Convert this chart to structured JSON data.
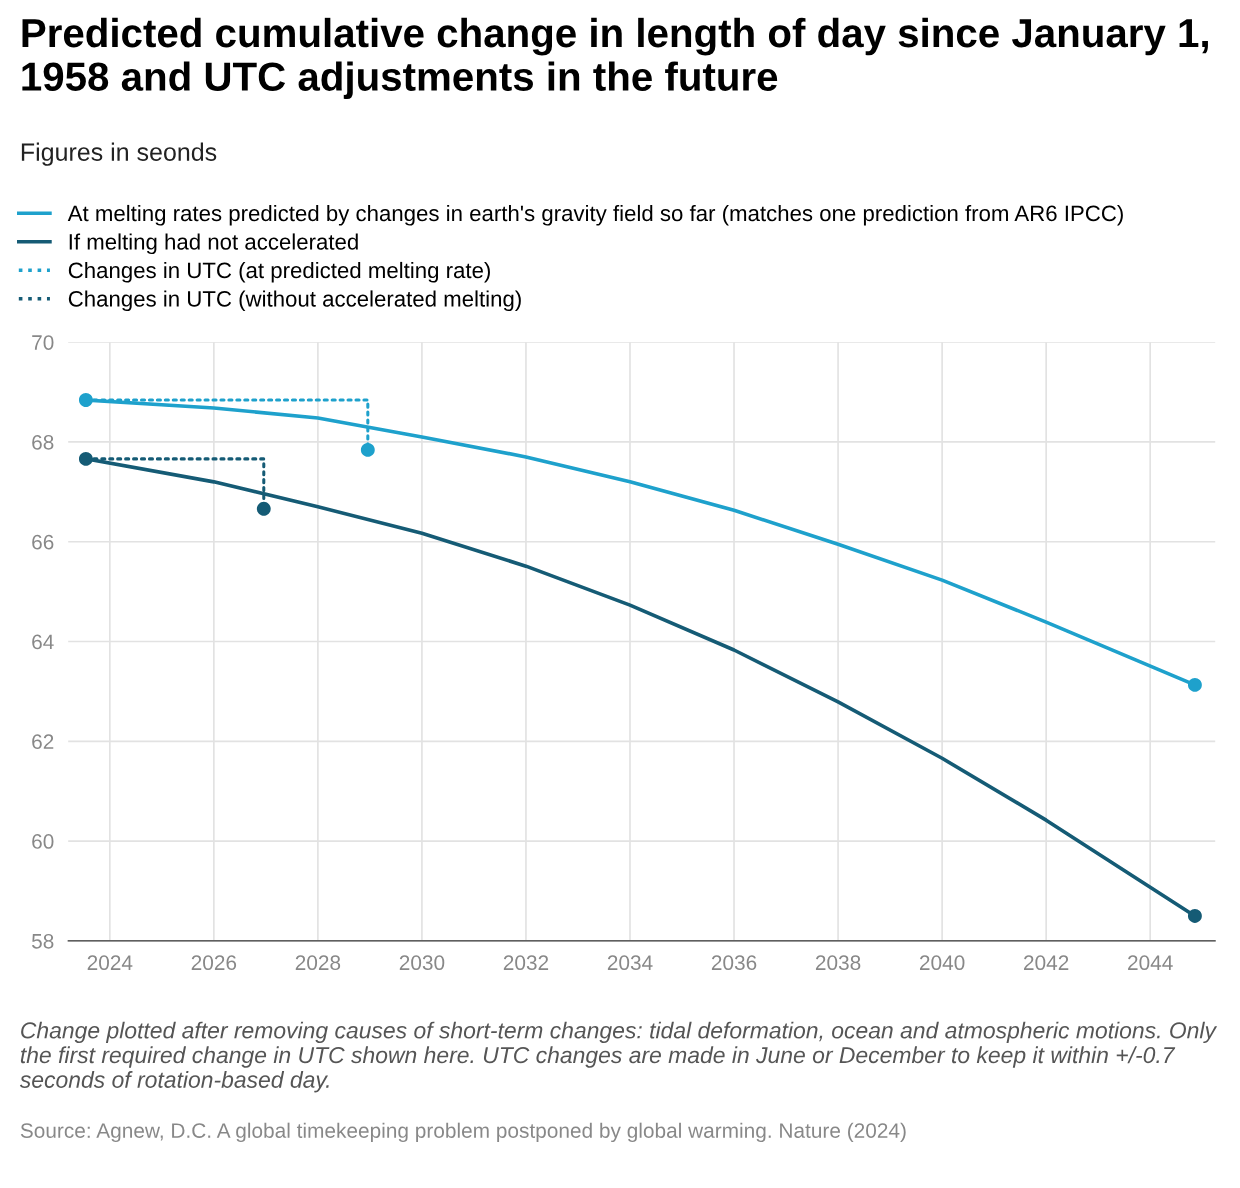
{
  "chart_data": {
    "type": "line",
    "title": "Predicted cumulative change in length of day since January 1, 1958 and UTC adjustments in the future",
    "subtitle": "Figures in seonds",
    "series": [
      {
        "name": "At melting rates predicted by changes in earth's gravity field so far (matches one prediction from AR6 IPCC)",
        "color": "#1ea1cc",
        "line_style": "solid",
        "x": [
          2023.54,
          2026,
          2028,
          2030,
          2032,
          2034,
          2036,
          2038,
          2040,
          2042,
          2044.86
        ],
        "values": [
          68.84,
          68.68,
          68.48,
          68.1,
          67.7,
          67.2,
          66.63,
          65.95,
          65.23,
          64.39,
          63.13
        ]
      },
      {
        "name": "If melting had not accelerated",
        "color": "#155b75",
        "line_style": "solid",
        "x": [
          2023.54,
          2026,
          2028,
          2030,
          2032,
          2034,
          2036,
          2038,
          2040,
          2042,
          2044.86
        ],
        "values": [
          67.66,
          67.2,
          66.7,
          66.17,
          65.51,
          64.73,
          63.83,
          62.79,
          61.66,
          60.42,
          58.5
        ]
      },
      {
        "name": "Changes in UTC (at predicted melting rate)",
        "color": "#1ea1cc",
        "line_style": "dotted",
        "x": [
          2023.54,
          2028.96,
          2028.96
        ],
        "values": [
          68.84,
          68.84,
          67.84
        ]
      },
      {
        "name": "Changes in UTC (without accelerated melting)",
        "color": "#155b75",
        "line_style": "dotted",
        "x": [
          2023.54,
          2026.96,
          2026.96
        ],
        "values": [
          67.66,
          67.66,
          66.66
        ]
      },
      {
        "type": "scatter",
        "color": "#1ea1cc",
        "x": [
          2023.54,
          2028.96,
          2044.86
        ],
        "values": [
          68.84,
          67.84,
          63.13
        ]
      },
      {
        "type": "scatter",
        "color": "#155b75",
        "x": [
          2023.54,
          2026.96,
          2044.86
        ],
        "values": [
          67.66,
          66.66,
          58.5
        ]
      }
    ],
    "xlim": [
      2023.2,
      2045.25
    ],
    "xticks": [
      2024,
      2026,
      2028,
      2030,
      2032,
      2034,
      2036,
      2038,
      2040,
      2042,
      2044
    ],
    "ylim": [
      58,
      70
    ],
    "yticks": [
      58,
      60,
      62,
      64,
      66,
      68,
      70
    ],
    "grid": true,
    "legend": "top",
    "annotations": [
      "Change plotted after removing causes of short-term changes: tidal deformation, ocean and atmospheric motions. Only the first required change in UTC shown here. UTC changes are made in June or December to keep it within +/-0.7 seconds of rotation-based day.",
      "Source: Agnew, D.C. A global timekeeping problem postponed by global warming. Nature (2024)"
    ]
  }
}
